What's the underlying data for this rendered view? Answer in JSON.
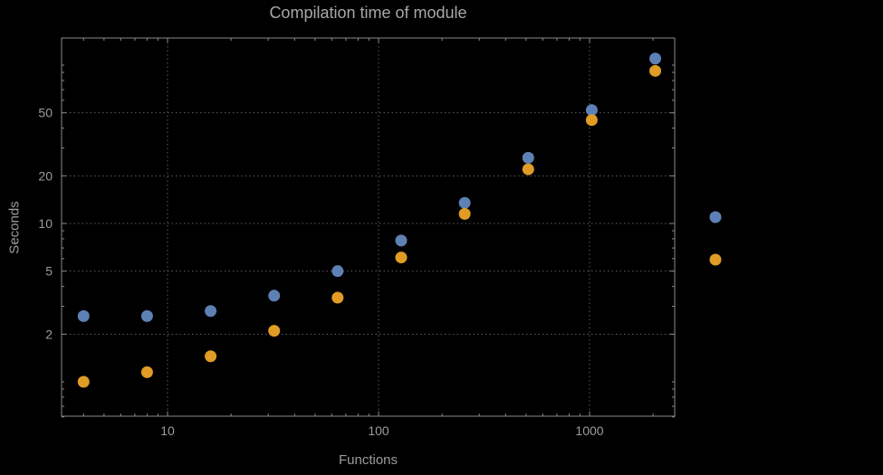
{
  "title": "Compilation time of module",
  "colors": {
    "background": "#000000",
    "frame": "#8a8a8a",
    "grid": "#5d5d5d",
    "tick_label": "#9c9c9c",
    "title": "#a8a8a8",
    "series_blue": "#5E81B5",
    "series_orange": "#E09C24"
  },
  "chart_data": {
    "type": "scatter",
    "title": "Compilation time of module",
    "xlabel": "Functions",
    "ylabel": "Seconds",
    "x_scale": "log",
    "y_scale": "log",
    "x_ticks": [
      10,
      100,
      1000
    ],
    "y_ticks": [
      2,
      5,
      10,
      20,
      50
    ],
    "x_range": [
      3.15,
      2530
    ],
    "y_range": [
      0.6,
      148
    ],
    "grid": "dotted gridlines at major ticks, framed plot",
    "legend_position": "right, markers only (no visible labels)",
    "series": [
      {
        "name": "series-1-blue",
        "color": "#5E81B5",
        "points": [
          [
            4,
            2.6
          ],
          [
            8,
            2.6
          ],
          [
            16,
            2.8
          ],
          [
            32,
            3.5
          ],
          [
            64,
            5.0
          ],
          [
            128,
            7.8
          ],
          [
            256,
            13.5
          ],
          [
            512,
            26
          ],
          [
            1024,
            52
          ],
          [
            2048,
            110
          ]
        ]
      },
      {
        "name": "series-2-orange",
        "color": "#E09C24",
        "points": [
          [
            4,
            1.0
          ],
          [
            8,
            1.15
          ],
          [
            16,
            1.45
          ],
          [
            32,
            2.1
          ],
          [
            64,
            3.4
          ],
          [
            128,
            6.1
          ],
          [
            256,
            11.5
          ],
          [
            512,
            22
          ],
          [
            1024,
            45
          ],
          [
            2048,
            92
          ]
        ]
      }
    ],
    "legend": {
      "markers": [
        {
          "name": "legend-marker-blue",
          "color": "#5E81B5"
        },
        {
          "name": "legend-marker-orange",
          "color": "#E09C24"
        }
      ]
    }
  }
}
